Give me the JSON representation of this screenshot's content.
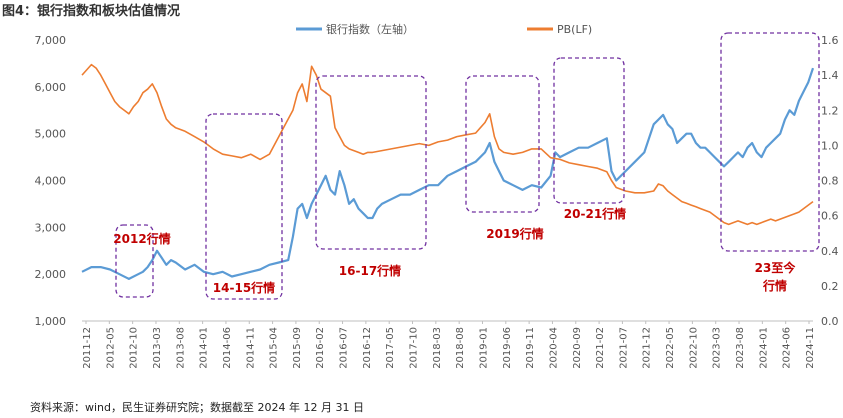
{
  "title": "图4：银行指数和板块估值情况",
  "source": "资料来源：wind，民生证券研究院；数据截至 2024 年 12 月 31 日",
  "chart_data": {
    "type": "line",
    "y_left": {
      "min": 1000,
      "max": 7000,
      "ticks": [
        "1,000",
        "2,000",
        "3,000",
        "4,000",
        "5,000",
        "6,000",
        "7,000"
      ]
    },
    "y_right": {
      "min": 0.0,
      "max": 1.6,
      "ticks": [
        "0.0",
        "0.2",
        "0.4",
        "0.6",
        "0.8",
        "1.0",
        "1.2",
        "1.4",
        "1.6"
      ]
    },
    "x_range": [
      0,
      156
    ],
    "x_ticks": [
      "2011-12",
      "2012-05",
      "2012-10",
      "2013-03",
      "2013-08",
      "2014-01",
      "2014-06",
      "2014-11",
      "2015-04",
      "2015-09",
      "2016-02",
      "2016-07",
      "2016-12",
      "2017-05",
      "2017-10",
      "2018-03",
      "2018-08",
      "2019-01",
      "2019-06",
      "2019-11",
      "2020-04",
      "2020-09",
      "2021-02",
      "2021-07",
      "2021-12",
      "2022-05",
      "2022-10",
      "2023-03",
      "2023-08",
      "2024-01",
      "2024-06",
      "2024-11"
    ],
    "series": [
      {
        "name": "银行指数（左轴）",
        "axis": "left",
        "color": "#5b9bd5",
        "points": [
          [
            0,
            2050
          ],
          [
            2,
            2150
          ],
          [
            4,
            2150
          ],
          [
            6,
            2100
          ],
          [
            8,
            2000
          ],
          [
            10,
            1900
          ],
          [
            12,
            2000
          ],
          [
            13,
            2050
          ],
          [
            14,
            2150
          ],
          [
            15,
            2300
          ],
          [
            16,
            2500
          ],
          [
            17,
            2350
          ],
          [
            18,
            2200
          ],
          [
            19,
            2300
          ],
          [
            20,
            2250
          ],
          [
            22,
            2100
          ],
          [
            24,
            2200
          ],
          [
            26,
            2050
          ],
          [
            28,
            2000
          ],
          [
            30,
            2050
          ],
          [
            32,
            1950
          ],
          [
            34,
            2000
          ],
          [
            36,
            2050
          ],
          [
            38,
            2100
          ],
          [
            40,
            2200
          ],
          [
            42,
            2250
          ],
          [
            44,
            2300
          ],
          [
            45,
            2800
          ],
          [
            46,
            3400
          ],
          [
            47,
            3500
          ],
          [
            48,
            3200
          ],
          [
            49,
            3500
          ],
          [
            50,
            3700
          ],
          [
            51,
            3900
          ],
          [
            52,
            4100
          ],
          [
            53,
            3800
          ],
          [
            54,
            3700
          ],
          [
            55,
            4200
          ],
          [
            56,
            3900
          ],
          [
            57,
            3500
          ],
          [
            58,
            3600
          ],
          [
            59,
            3400
          ],
          [
            60,
            3300
          ],
          [
            61,
            3200
          ],
          [
            62,
            3200
          ],
          [
            63,
            3400
          ],
          [
            64,
            3500
          ],
          [
            66,
            3600
          ],
          [
            68,
            3700
          ],
          [
            70,
            3700
          ],
          [
            72,
            3800
          ],
          [
            74,
            3900
          ],
          [
            76,
            3900
          ],
          [
            78,
            4100
          ],
          [
            80,
            4200
          ],
          [
            82,
            4300
          ],
          [
            84,
            4400
          ],
          [
            86,
            4600
          ],
          [
            87,
            4800
          ],
          [
            88,
            4400
          ],
          [
            89,
            4200
          ],
          [
            90,
            4000
          ],
          [
            92,
            3900
          ],
          [
            94,
            3800
          ],
          [
            96,
            3900
          ],
          [
            98,
            3850
          ],
          [
            100,
            4100
          ],
          [
            101,
            4600
          ],
          [
            102,
            4500
          ],
          [
            104,
            4600
          ],
          [
            106,
            4700
          ],
          [
            108,
            4700
          ],
          [
            110,
            4800
          ],
          [
            112,
            4900
          ],
          [
            113,
            4200
          ],
          [
            114,
            4000
          ],
          [
            116,
            4200
          ],
          [
            118,
            4400
          ],
          [
            120,
            4600
          ],
          [
            121,
            4900
          ],
          [
            122,
            5200
          ],
          [
            123,
            5300
          ],
          [
            124,
            5400
          ],
          [
            125,
            5200
          ],
          [
            126,
            5100
          ],
          [
            127,
            4800
          ],
          [
            128,
            4900
          ],
          [
            129,
            5000
          ],
          [
            130,
            5000
          ],
          [
            131,
            4800
          ],
          [
            132,
            4700
          ],
          [
            133,
            4700
          ],
          [
            134,
            4600
          ],
          [
            135,
            4500
          ],
          [
            136,
            4400
          ],
          [
            137,
            4300
          ],
          [
            138,
            4400
          ],
          [
            139,
            4500
          ],
          [
            140,
            4600
          ],
          [
            141,
            4500
          ],
          [
            142,
            4700
          ],
          [
            143,
            4800
          ],
          [
            144,
            4600
          ],
          [
            145,
            4500
          ],
          [
            146,
            4700
          ],
          [
            147,
            4800
          ],
          [
            148,
            4900
          ],
          [
            149,
            5000
          ],
          [
            150,
            5300
          ],
          [
            151,
            5500
          ],
          [
            152,
            5400
          ],
          [
            153,
            5700
          ],
          [
            154,
            5900
          ],
          [
            155,
            6100
          ],
          [
            156,
            6400
          ]
        ]
      },
      {
        "name": "PB(LF)",
        "axis": "right",
        "color": "#ed7d31",
        "points": [
          [
            0,
            1.4
          ],
          [
            1,
            1.43
          ],
          [
            2,
            1.46
          ],
          [
            3,
            1.44
          ],
          [
            4,
            1.4
          ],
          [
            5,
            1.35
          ],
          [
            6,
            1.3
          ],
          [
            7,
            1.25
          ],
          [
            8,
            1.22
          ],
          [
            9,
            1.2
          ],
          [
            10,
            1.18
          ],
          [
            11,
            1.22
          ],
          [
            12,
            1.25
          ],
          [
            13,
            1.3
          ],
          [
            14,
            1.32
          ],
          [
            15,
            1.35
          ],
          [
            16,
            1.3
          ],
          [
            17,
            1.22
          ],
          [
            18,
            1.15
          ],
          [
            19,
            1.12
          ],
          [
            20,
            1.1
          ],
          [
            22,
            1.08
          ],
          [
            24,
            1.05
          ],
          [
            26,
            1.02
          ],
          [
            28,
            0.98
          ],
          [
            30,
            0.95
          ],
          [
            32,
            0.94
          ],
          [
            34,
            0.93
          ],
          [
            36,
            0.95
          ],
          [
            38,
            0.92
          ],
          [
            40,
            0.95
          ],
          [
            42,
            1.05
          ],
          [
            44,
            1.15
          ],
          [
            45,
            1.2
          ],
          [
            46,
            1.3
          ],
          [
            47,
            1.35
          ],
          [
            48,
            1.25
          ],
          [
            49,
            1.45
          ],
          [
            50,
            1.4
          ],
          [
            51,
            1.32
          ],
          [
            52,
            1.3
          ],
          [
            53,
            1.28
          ],
          [
            54,
            1.1
          ],
          [
            55,
            1.05
          ],
          [
            56,
            1.0
          ],
          [
            57,
            0.98
          ],
          [
            58,
            0.97
          ],
          [
            59,
            0.96
          ],
          [
            60,
            0.95
          ],
          [
            61,
            0.96
          ],
          [
            62,
            0.96
          ],
          [
            64,
            0.97
          ],
          [
            66,
            0.98
          ],
          [
            68,
            0.99
          ],
          [
            70,
            1.0
          ],
          [
            72,
            1.01
          ],
          [
            74,
            1.0
          ],
          [
            76,
            1.02
          ],
          [
            78,
            1.03
          ],
          [
            80,
            1.05
          ],
          [
            82,
            1.06
          ],
          [
            84,
            1.07
          ],
          [
            86,
            1.13
          ],
          [
            87,
            1.18
          ],
          [
            88,
            1.05
          ],
          [
            89,
            0.98
          ],
          [
            90,
            0.96
          ],
          [
            92,
            0.95
          ],
          [
            94,
            0.96
          ],
          [
            96,
            0.98
          ],
          [
            98,
            0.98
          ],
          [
            100,
            0.93
          ],
          [
            102,
            0.92
          ],
          [
            104,
            0.9
          ],
          [
            106,
            0.89
          ],
          [
            108,
            0.88
          ],
          [
            110,
            0.87
          ],
          [
            112,
            0.85
          ],
          [
            113,
            0.8
          ],
          [
            114,
            0.76
          ],
          [
            116,
            0.74
          ],
          [
            118,
            0.73
          ],
          [
            120,
            0.73
          ],
          [
            122,
            0.74
          ],
          [
            123,
            0.78
          ],
          [
            124,
            0.77
          ],
          [
            125,
            0.74
          ],
          [
            126,
            0.72
          ],
          [
            127,
            0.7
          ],
          [
            128,
            0.68
          ],
          [
            129,
            0.67
          ],
          [
            130,
            0.66
          ],
          [
            131,
            0.65
          ],
          [
            132,
            0.64
          ],
          [
            133,
            0.63
          ],
          [
            134,
            0.62
          ],
          [
            135,
            0.6
          ],
          [
            136,
            0.58
          ],
          [
            137,
            0.56
          ],
          [
            138,
            0.55
          ],
          [
            139,
            0.56
          ],
          [
            140,
            0.57
          ],
          [
            141,
            0.56
          ],
          [
            142,
            0.55
          ],
          [
            143,
            0.56
          ],
          [
            144,
            0.55
          ],
          [
            145,
            0.56
          ],
          [
            146,
            0.57
          ],
          [
            147,
            0.58
          ],
          [
            148,
            0.57
          ],
          [
            149,
            0.58
          ],
          [
            150,
            0.59
          ],
          [
            151,
            0.6
          ],
          [
            152,
            0.61
          ],
          [
            153,
            0.62
          ],
          [
            154,
            0.64
          ],
          [
            155,
            0.66
          ],
          [
            156,
            0.68
          ]
        ]
      }
    ],
    "annotations": [
      {
        "label": "2012行情",
        "lines": [
          "2012行情"
        ]
      },
      {
        "label": "14-15行情",
        "lines": [
          "14-15行情"
        ]
      },
      {
        "label": "16-17行情",
        "lines": [
          "16-17行情"
        ]
      },
      {
        "label": "2019行情",
        "lines": [
          "2019行情"
        ]
      },
      {
        "label": "20-21行情",
        "lines": [
          "20-21行情"
        ]
      },
      {
        "label": "23至今行情",
        "lines": [
          "23至今",
          "行情"
        ]
      }
    ]
  }
}
